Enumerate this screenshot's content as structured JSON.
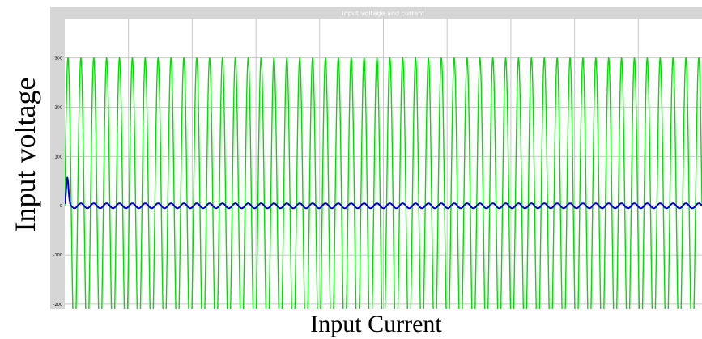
{
  "chart_data": {
    "type": "line",
    "title": "input voltage and current",
    "xlabel": "Input Current",
    "ylabel": "Input voltage",
    "ylim": [
      -210,
      380
    ],
    "xlim": [
      0,
      1
    ],
    "grid": true,
    "yticks": [
      -200,
      -100,
      0,
      100,
      200,
      300
    ],
    "ytick_labels": [
      "-200",
      "-100",
      "0",
      "100",
      "200",
      "300"
    ],
    "series": [
      {
        "id": "voltage",
        "color": "#00e000",
        "amplitude": 300,
        "cycles": 49.5,
        "offset": 0
      },
      {
        "id": "current",
        "color": "#0000cc",
        "amplitude": 5,
        "cycles": 49.5,
        "offset": 0,
        "startup_spike": 52
      }
    ],
    "colors": {
      "frame": "#d6d6d6",
      "plot_bg": "#ffffff",
      "grid": "#c8c8c8",
      "title_text": "#ffffff"
    }
  }
}
